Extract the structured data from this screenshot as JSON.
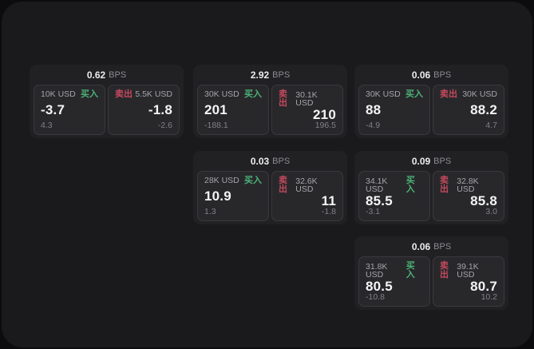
{
  "labels": {
    "bps_suffix": "BPS",
    "buy": "买入",
    "sell": "卖出"
  },
  "colors": {
    "background": "#0c0c0e",
    "surface": "#1a1a1c",
    "card": "#212124",
    "panel": "#28282b",
    "panel_border": "#3a3a3e",
    "buy_green": "#4cb277",
    "sell_red": "#c4495e",
    "primary_text": "#f4f4f6",
    "secondary_text": "#a5a5aa",
    "muted_text": "#808087"
  },
  "cards": [
    {
      "bps": "0.62",
      "buy": {
        "amount": "10K USD",
        "price": "-3.7",
        "delta": "4.3"
      },
      "sell": {
        "amount": "5.5K USD",
        "price": "-1.8",
        "delta": "-2.6"
      }
    },
    {
      "bps": "2.92",
      "buy": {
        "amount": "30K USD",
        "price": "201",
        "delta": "-188.1"
      },
      "sell": {
        "amount": "30.1K USD",
        "price": "210",
        "delta": "196.5"
      }
    },
    {
      "bps": "0.06",
      "buy": {
        "amount": "30K USD",
        "price": "88",
        "delta": "-4.9"
      },
      "sell": {
        "amount": "30K USD",
        "price": "88.2",
        "delta": "4.7"
      }
    },
    {
      "bps": "0.03",
      "buy": {
        "amount": "28K USD",
        "price": "10.9",
        "delta": "1.3"
      },
      "sell": {
        "amount": "32.6K USD",
        "price": "11",
        "delta": "-1.8"
      }
    },
    {
      "bps": "0.09",
      "buy": {
        "amount": "34.1K USD",
        "price": "85.5",
        "delta": "-3.1"
      },
      "sell": {
        "amount": "32.8K USD",
        "price": "85.8",
        "delta": "3.0"
      }
    },
    {
      "bps": "0.06",
      "buy": {
        "amount": "31.8K USD",
        "price": "80.5",
        "delta": "-10.8"
      },
      "sell": {
        "amount": "39.1K USD",
        "price": "80.7",
        "delta": "10.2"
      }
    }
  ]
}
